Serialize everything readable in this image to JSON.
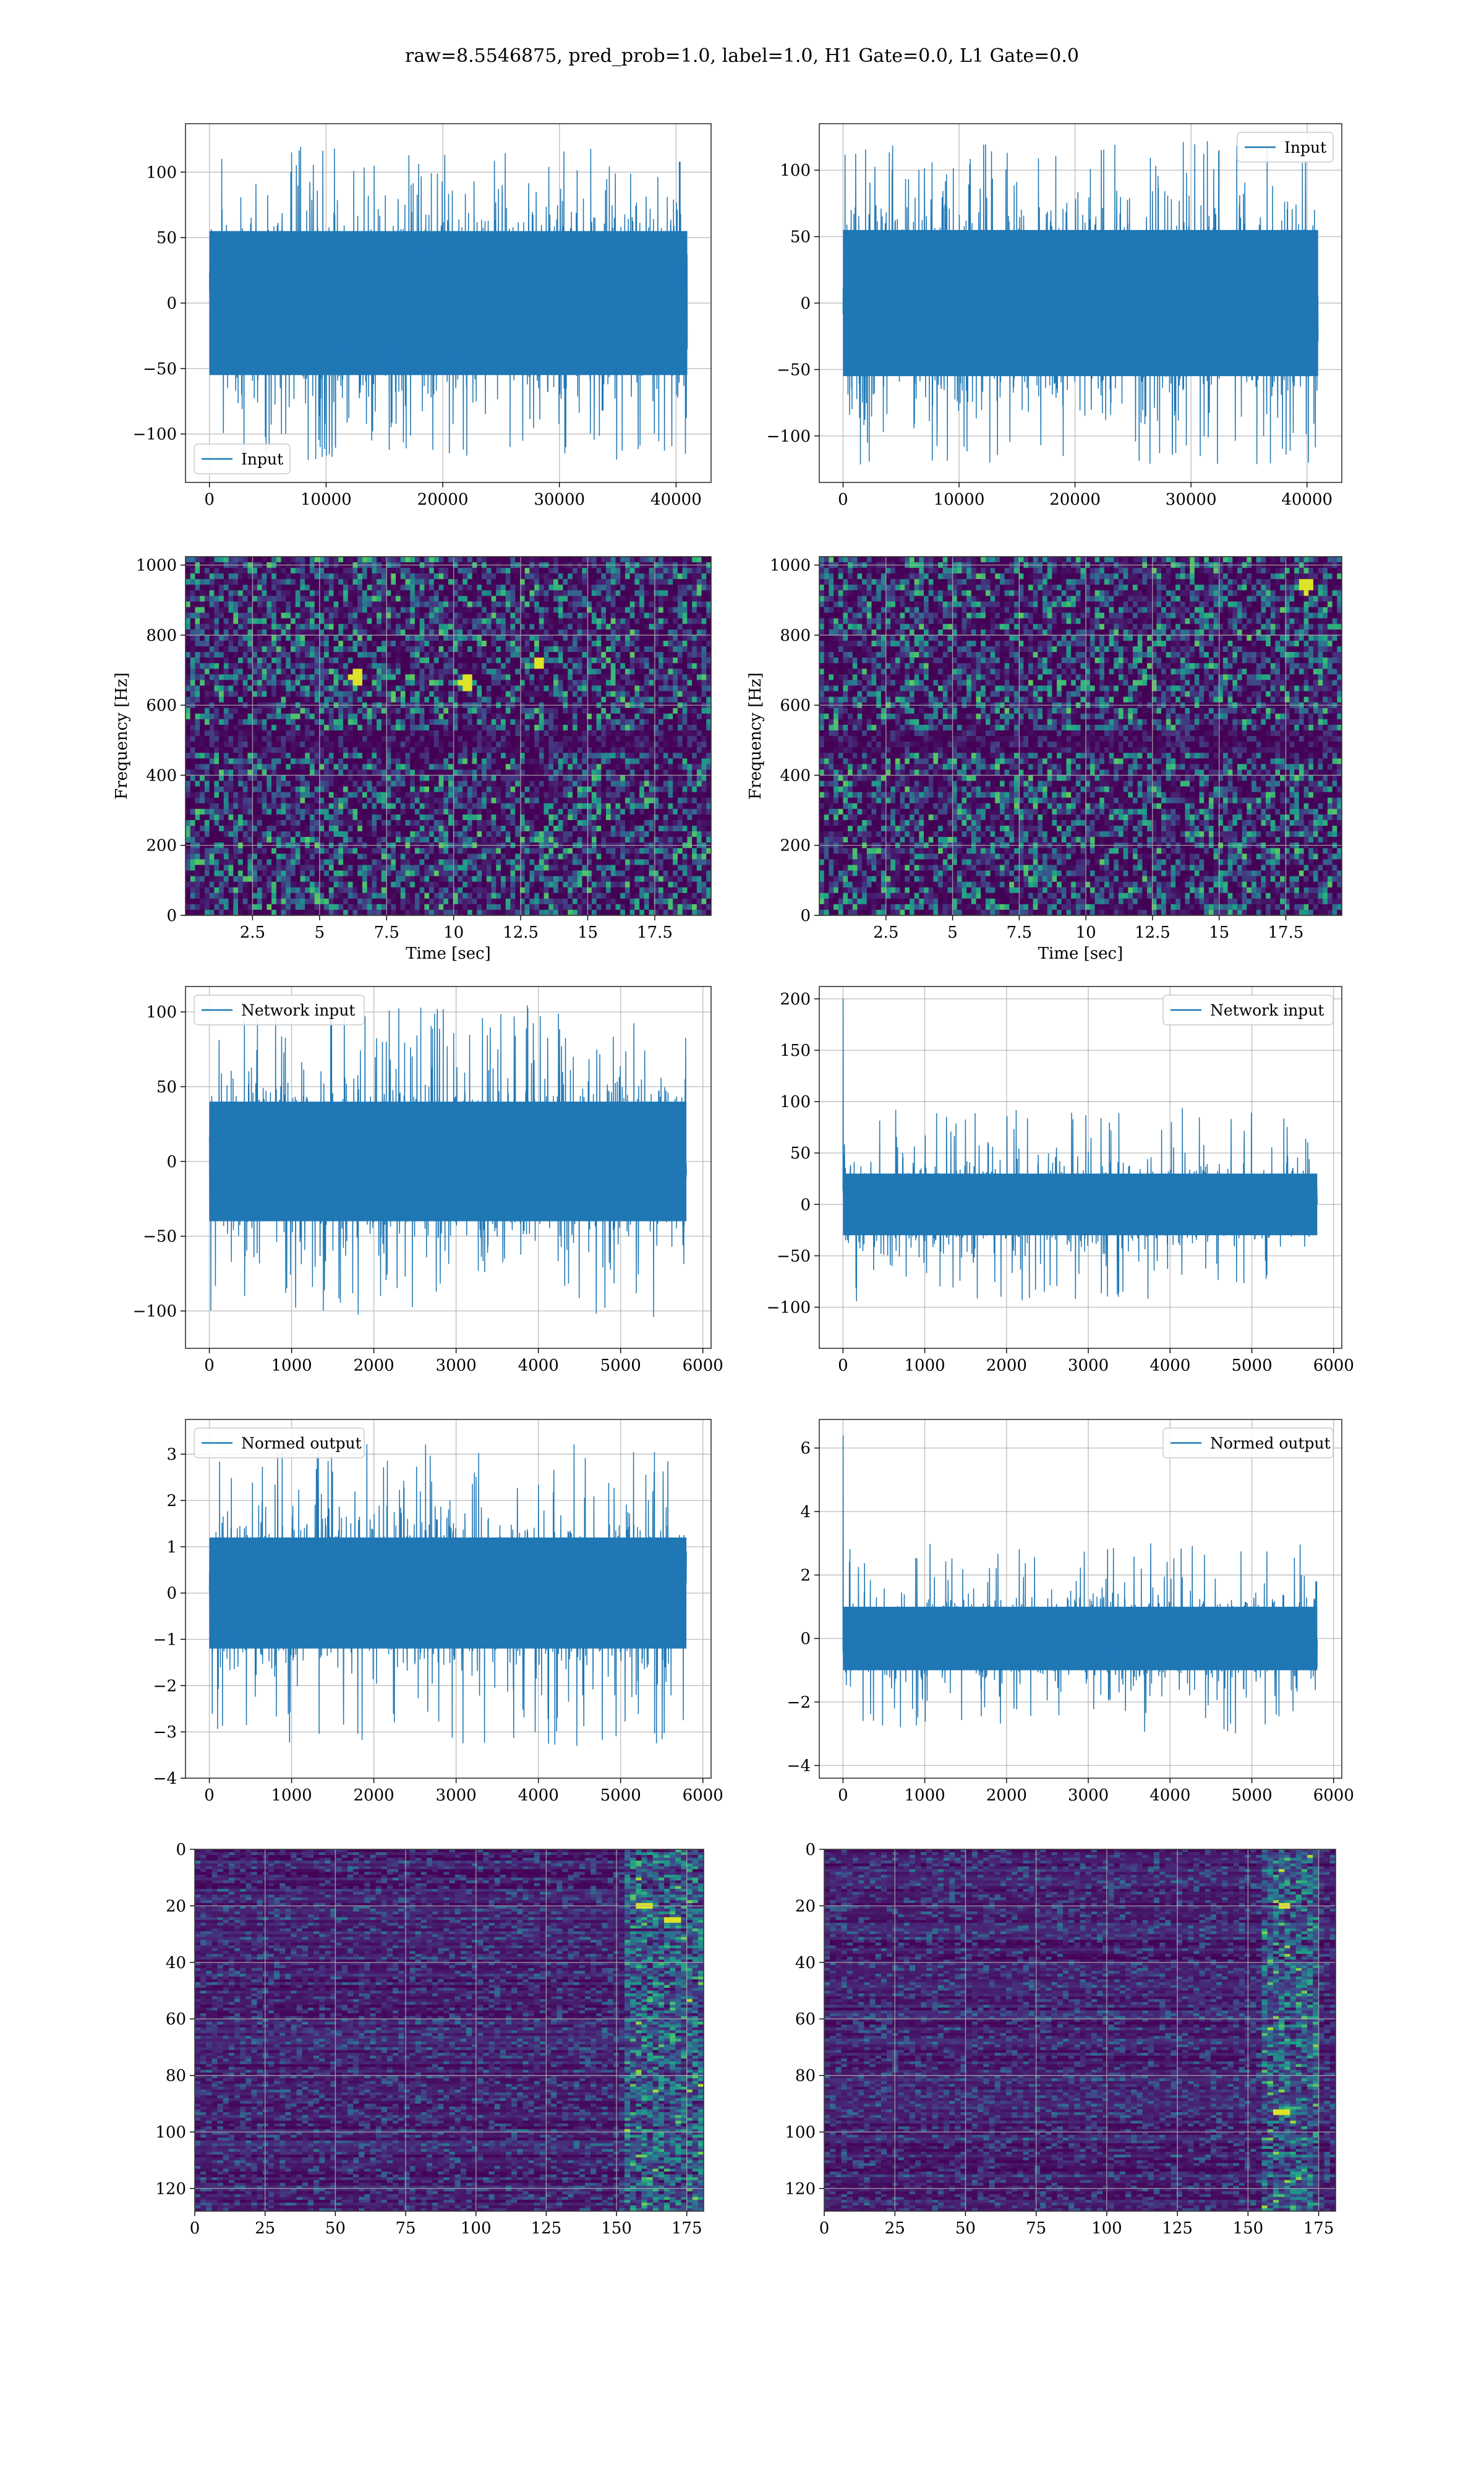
{
  "title": "raw=8.5546875, pred_prob=1.0, label=1.0, H1 Gate=0.0, L1 Gate=0.0",
  "colors": {
    "line": "#1f77b4",
    "grid": "#b0b0b0",
    "viridis_low": "#440154",
    "viridis_high": "#fde725"
  },
  "chart_data": [
    {
      "id": "r1c1",
      "type": "line",
      "row": 1,
      "col": 1,
      "xlim": [
        -2050,
        43000
      ],
      "ylim": [
        -137,
        137
      ],
      "xticks": [
        0,
        10000,
        20000,
        30000,
        40000
      ],
      "yticks": [
        -100,
        -50,
        0,
        50,
        100
      ],
      "grid": true,
      "legend": "lower-left",
      "series": [
        {
          "name": "Input",
          "n": 40960,
          "core": 55,
          "peak": 120
        }
      ]
    },
    {
      "id": "r1c2",
      "type": "line",
      "row": 1,
      "col": 2,
      "xlim": [
        -2050,
        43000
      ],
      "ylim": [
        -135,
        135
      ],
      "xticks": [
        0,
        10000,
        20000,
        30000,
        40000
      ],
      "yticks": [
        -100,
        -50,
        0,
        50,
        100
      ],
      "grid": true,
      "legend": "upper-right",
      "series": [
        {
          "name": "Input",
          "n": 40960,
          "core": 55,
          "peak": 123
        }
      ]
    },
    {
      "id": "r2c1",
      "type": "heatmap",
      "row": 2,
      "col": 1,
      "xlim": [
        0,
        19.6
      ],
      "ylim": [
        0,
        1024
      ],
      "xticks": [
        2.5,
        5.0,
        7.5,
        10.0,
        12.5,
        15.0,
        17.5
      ],
      "yticks": [
        0,
        200,
        400,
        600,
        800,
        1000
      ],
      "xlabel": "Time [sec]",
      "ylabel": "Frequency [Hz]",
      "grid": true,
      "hot_spots": [
        [
          6.4,
          680
        ],
        [
          13.2,
          720
        ],
        [
          10.5,
          660
        ]
      ]
    },
    {
      "id": "r2c2",
      "type": "heatmap",
      "row": 2,
      "col": 2,
      "xlim": [
        0,
        19.6
      ],
      "ylim": [
        0,
        1024
      ],
      "xticks": [
        2.5,
        5.0,
        7.5,
        10.0,
        12.5,
        15.0,
        17.5
      ],
      "yticks": [
        0,
        200,
        400,
        600,
        800,
        1000
      ],
      "xlabel": "Time [sec]",
      "ylabel": "Frequency [Hz]",
      "grid": true,
      "hot_spots": [
        [
          18.3,
          940
        ]
      ]
    },
    {
      "id": "r3c1",
      "type": "line",
      "row": 3,
      "col": 1,
      "xlim": [
        -290,
        6100
      ],
      "ylim": [
        -125,
        117
      ],
      "xticks": [
        0,
        1000,
        2000,
        3000,
        4000,
        5000,
        6000
      ],
      "yticks": [
        -100,
        -50,
        0,
        50,
        100
      ],
      "grid": true,
      "legend": "upper-left",
      "series": [
        {
          "name": "Network input",
          "n": 5800,
          "core": 40,
          "peak": 105
        }
      ]
    },
    {
      "id": "r3c2",
      "type": "line",
      "row": 3,
      "col": 2,
      "xlim": [
        -290,
        6100
      ],
      "ylim": [
        -140,
        212
      ],
      "xticks": [
        0,
        1000,
        2000,
        3000,
        4000,
        5000,
        6000
      ],
      "yticks": [
        -100,
        -50,
        0,
        50,
        100,
        150,
        200
      ],
      "grid": true,
      "legend": "upper-right",
      "series": [
        {
          "name": "Network input",
          "n": 5800,
          "core": 30,
          "peak": 95,
          "spike": [
            0,
            200
          ]
        }
      ]
    },
    {
      "id": "r4c1",
      "type": "line",
      "row": 4,
      "col": 1,
      "xlim": [
        -290,
        6100
      ],
      "ylim": [
        -4.0,
        3.75
      ],
      "xticks": [
        0,
        1000,
        2000,
        3000,
        4000,
        5000,
        6000
      ],
      "yticks": [
        -4,
        -3,
        -2,
        -1,
        0,
        1,
        2,
        3
      ],
      "grid": true,
      "legend": "upper-left",
      "series": [
        {
          "name": "Normed output",
          "n": 5800,
          "core": 1.2,
          "peak": 3.3
        }
      ]
    },
    {
      "id": "r4c2",
      "type": "line",
      "row": 4,
      "col": 2,
      "xlim": [
        -290,
        6100
      ],
      "ylim": [
        -4.4,
        6.9
      ],
      "xticks": [
        0,
        1000,
        2000,
        3000,
        4000,
        5000,
        6000
      ],
      "yticks": [
        -4,
        -2,
        0,
        2,
        4,
        6
      ],
      "grid": true,
      "legend": "upper-right",
      "series": [
        {
          "name": "Normed output",
          "n": 5800,
          "core": 1.0,
          "peak": 3.0,
          "spike": [
            0,
            6.4
          ]
        }
      ]
    },
    {
      "id": "r5c1",
      "type": "heatmap",
      "row": 5,
      "col": 1,
      "xlim": [
        0,
        181
      ],
      "ylim": [
        128,
        0
      ],
      "xticks": [
        0,
        25,
        50,
        75,
        100,
        125,
        150,
        175
      ],
      "yticks": [
        0,
        20,
        40,
        60,
        80,
        100,
        120
      ],
      "grid": true,
      "bright_band": [
        152,
        181
      ],
      "hot_spots": [
        [
          170,
          25
        ],
        [
          160,
          20
        ]
      ]
    },
    {
      "id": "r5c2",
      "type": "heatmap",
      "row": 5,
      "col": 2,
      "xlim": [
        0,
        181
      ],
      "ylim": [
        128,
        0
      ],
      "xticks": [
        0,
        25,
        50,
        75,
        100,
        125,
        150,
        175
      ],
      "yticks": [
        0,
        20,
        40,
        60,
        80,
        100,
        120
      ],
      "grid": true,
      "bright_band": [
        155,
        175
      ],
      "hot_spots": [
        [
          162,
          93
        ],
        [
          163,
          20
        ]
      ]
    }
  ]
}
